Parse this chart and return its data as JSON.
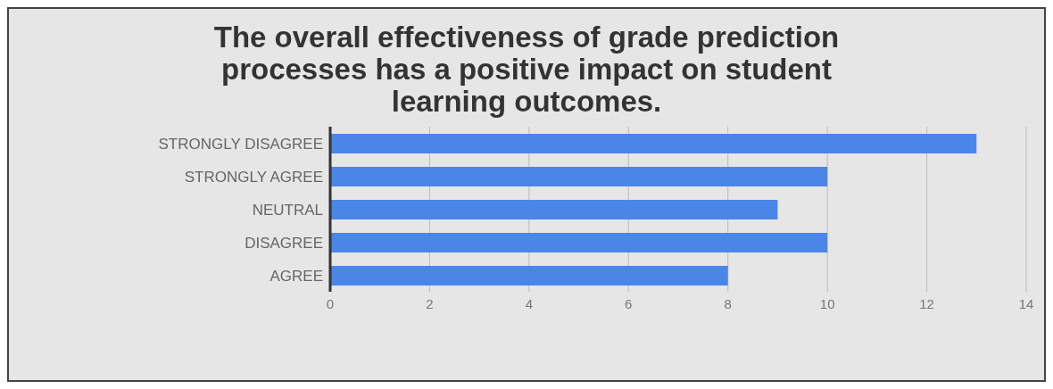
{
  "chart_data": {
    "type": "bar",
    "orientation": "horizontal",
    "title": "The overall effectiveness of grade prediction processes has a positive impact on student learning outcomes.",
    "categories": [
      "STRONGLY DISAGREE",
      "STRONGLY AGREE",
      "NEUTRAL",
      "DISAGREE",
      "AGREE"
    ],
    "values": [
      13,
      10,
      9,
      10,
      8
    ],
    "color": "#4a86e8",
    "xlim": [
      0,
      14
    ],
    "xticks": [
      0,
      2,
      4,
      6,
      8,
      10,
      12,
      14
    ],
    "grid": "x"
  }
}
